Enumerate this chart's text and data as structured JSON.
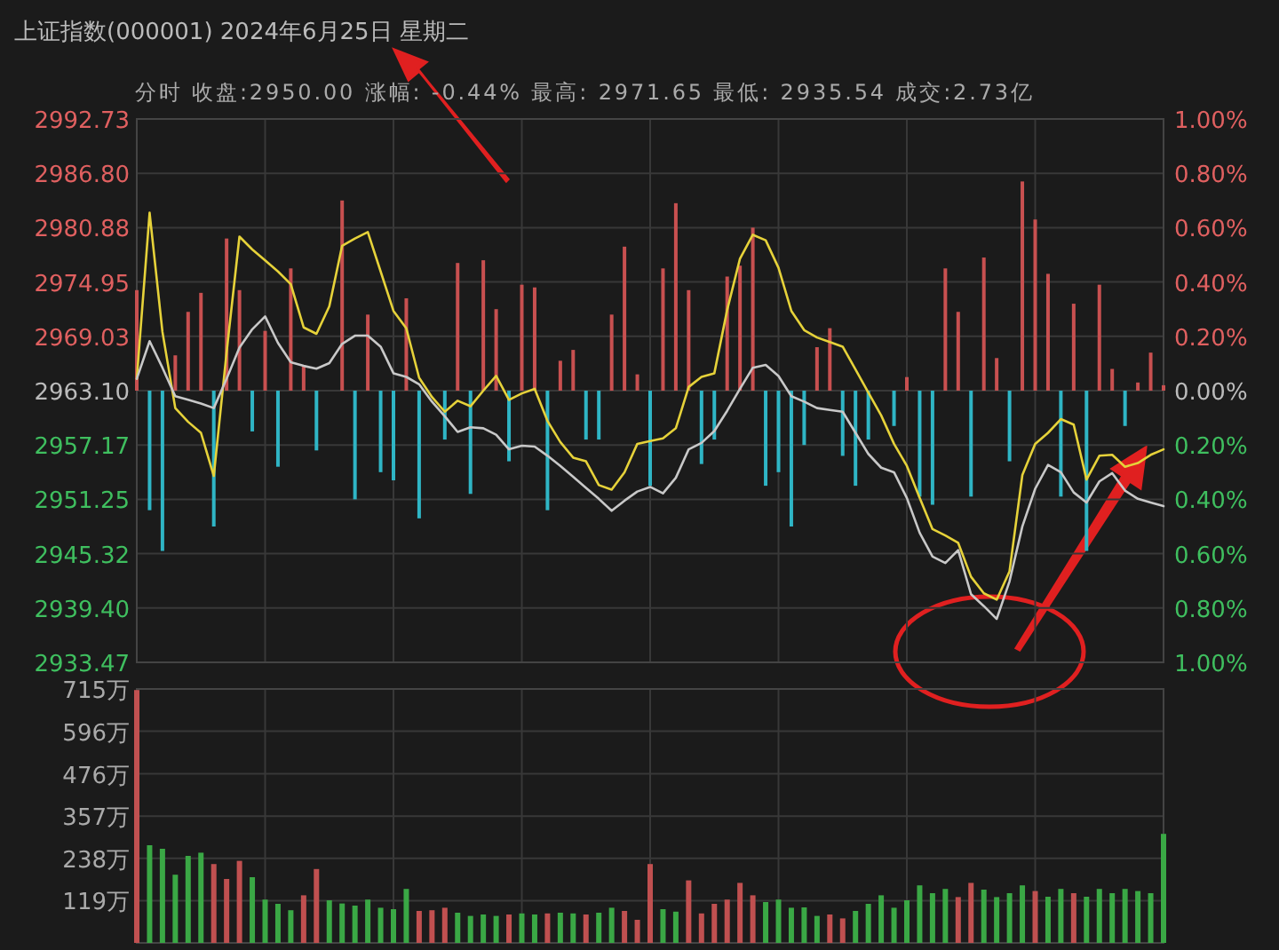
{
  "chart_data": [
    {
      "type": "line",
      "title": "上证指数(000001) 2024年6月25日 星期二",
      "subtitle": "分时 收盘:2950.00 涨幅: -0.44% 最高: 2971.65 最低: 2935.54 成交:2.73亿",
      "categories": [
        null,
        null,
        null,
        null,
        null,
        null,
        null,
        null,
        null,
        null,
        null,
        null,
        null,
        null,
        null,
        null,
        null,
        null,
        null,
        null,
        null,
        null,
        null,
        null,
        null,
        null,
        null,
        null,
        null,
        null,
        null,
        null,
        null,
        null,
        null,
        null,
        null,
        null,
        null,
        null,
        null,
        null,
        null,
        null,
        null,
        null,
        null,
        null,
        null,
        null,
        null,
        null,
        null,
        null,
        null,
        null,
        null,
        null,
        null,
        null,
        null,
        null,
        null,
        null,
        null,
        null,
        null,
        null,
        null,
        null,
        null,
        null,
        null,
        null,
        null,
        null,
        null,
        null,
        null,
        null,
        null
      ],
      "ylim": [
        2933.47,
        2992.73
      ],
      "yticks": [
        {
          "value": 2933.47,
          "label": "2933.47"
        },
        {
          "value": 2939.4,
          "label": "2939.40"
        },
        {
          "value": 2945.32,
          "label": "2945.32"
        },
        {
          "value": 2951.25,
          "label": "2951.25"
        },
        {
          "value": 2957.17,
          "label": "2957.17"
        },
        {
          "value": 2963.1,
          "label": "2963.10"
        },
        {
          "value": 2969.03,
          "label": "2969.03"
        },
        {
          "value": 2974.95,
          "label": "2974.95"
        },
        {
          "value": 2980.88,
          "label": "2980.88"
        },
        {
          "value": 2986.8,
          "label": "2986.80"
        },
        {
          "value": 2992.73,
          "label": "2992.73"
        }
      ],
      "y2lim": [
        -1,
        1
      ],
      "y2ticks": [
        {
          "value": -1,
          "label": "1.00%"
        },
        {
          "value": -0.8,
          "label": "0.80%"
        },
        {
          "value": -0.6,
          "label": "0.60%"
        },
        {
          "value": -0.4,
          "label": "0.40%"
        },
        {
          "value": -0.2,
          "label": "0.20%"
        },
        {
          "value": 0,
          "label": "0.00%"
        },
        {
          "value": 0.2,
          "label": "0.20%"
        },
        {
          "value": 0.4,
          "label": "0.40%"
        },
        {
          "value": 0.6,
          "label": "0.60%"
        },
        {
          "value": 0.8,
          "label": "0.80%"
        },
        {
          "value": 1,
          "label": "1.00%"
        }
      ],
      "grid": true,
      "series": [
        {
          "type": "bar",
          "axis": "y2",
          "color": "#c85050",
          "values": [
            0.37,
            null,
            null,
            0.13,
            0.29,
            0.36,
            null,
            0.56,
            0.37,
            null,
            0.22,
            null,
            0.45,
            0.09,
            null,
            null,
            0.7,
            null,
            0.28,
            null,
            null,
            0.34,
            null,
            null,
            null,
            0.47,
            null,
            0.48,
            0.3,
            null,
            0.39,
            0.38,
            null,
            0.11,
            0.15,
            null,
            null,
            0.28,
            0.53,
            0.06,
            null,
            0.45,
            0.69,
            0.37,
            null,
            null,
            0.42,
            0.46,
            0.6,
            null,
            null,
            null,
            null,
            0.16,
            0.23,
            null,
            null,
            null,
            null,
            null,
            0.05,
            null,
            null,
            0.45,
            0.29,
            null,
            0.49,
            0.12,
            null,
            0.77,
            0.63,
            0.43,
            null,
            0.32,
            null,
            0.39,
            0.08,
            null,
            0.03,
            0.14,
            0.02
          ]
        },
        {
          "type": "bar",
          "axis": "y2",
          "color": "#2fb5c5",
          "values": [
            null,
            -0.44,
            -0.59,
            null,
            null,
            null,
            -0.5,
            null,
            null,
            -0.15,
            null,
            -0.28,
            null,
            null,
            -0.22,
            null,
            null,
            -0.4,
            null,
            -0.3,
            -0.33,
            null,
            -0.47,
            null,
            -0.18,
            null,
            -0.38,
            null,
            null,
            -0.26,
            null,
            null,
            -0.44,
            null,
            null,
            -0.18,
            -0.18,
            null,
            null,
            null,
            -0.35,
            null,
            null,
            null,
            -0.27,
            -0.18,
            null,
            null,
            null,
            -0.35,
            -0.3,
            -0.5,
            -0.2,
            null,
            null,
            -0.24,
            -0.35,
            -0.18,
            null,
            -0.13,
            null,
            -0.39,
            -0.42,
            null,
            null,
            -0.39,
            null,
            null,
            -0.26,
            null,
            null,
            null,
            -0.39,
            null,
            -0.59,
            null,
            null,
            -0.13,
            null,
            null,
            null
          ]
        },
        {
          "type": "line",
          "color": "#e6d23a",
          "values": [
            2964.4,
            2982.5,
            2969.5,
            2961.2,
            2959.7,
            2958.5,
            2953.8,
            2967.3,
            2979.9,
            2978.5,
            2977.3,
            2976.1,
            2974.7,
            2970.0,
            2969.3,
            2972.3,
            2978.9,
            2979.7,
            2980.4,
            2976.1,
            2971.8,
            2969.9,
            2964.5,
            2962.4,
            2960.8,
            2962.0,
            2961.4,
            2963.1,
            2964.7,
            2962.1,
            2962.8,
            2963.3,
            2959.8,
            2957.5,
            2955.8,
            2955.4,
            2952.8,
            2952.3,
            2954.2,
            2957.3,
            2957.6,
            2957.9,
            2959.0,
            2963.5,
            2964.6,
            2965.0,
            2971.9,
            2977.5,
            2980.1,
            2979.5,
            2976.5,
            2971.8,
            2969.7,
            2968.9,
            2968.4,
            2967.9,
            2965.4,
            2962.9,
            2960.4,
            2957.3,
            2954.9,
            2951.4,
            2948.0,
            2947.3,
            2946.5,
            2942.8,
            2941.0,
            2940.3,
            2943.4,
            2953.9,
            2957.3,
            2958.5,
            2960.0,
            2959.4,
            2953.4,
            2956.0,
            2956.1,
            2954.8,
            2955.2,
            2956.1,
            2956.7
          ]
        },
        {
          "type": "line",
          "color": "#c8c8c8",
          "values": [
            2964.4,
            2968.5,
            2965.6,
            2962.5,
            2962.1,
            2961.7,
            2961.2,
            2964.4,
            2967.8,
            2969.8,
            2971.2,
            2968.3,
            2966.2,
            2965.8,
            2965.5,
            2966.1,
            2968.2,
            2969.1,
            2969.1,
            2967.9,
            2965.0,
            2964.6,
            2963.8,
            2961.9,
            2960.3,
            2958.6,
            2959.1,
            2959.0,
            2958.3,
            2956.7,
            2957.1,
            2957.0,
            2956.0,
            2954.9,
            2953.7,
            2952.5,
            2951.3,
            2950.0,
            2951.1,
            2952.1,
            2952.6,
            2951.9,
            2953.6,
            2956.7,
            2957.4,
            2958.7,
            2960.9,
            2963.3,
            2965.6,
            2965.9,
            2964.7,
            2962.5,
            2961.9,
            2961.2,
            2961.0,
            2960.8,
            2958.5,
            2956.2,
            2954.7,
            2954.2,
            2951.4,
            2947.6,
            2945.0,
            2944.3,
            2945.7,
            2940.9,
            2939.6,
            2938.2,
            2942.3,
            2948.3,
            2952.4,
            2955.0,
            2954.2,
            2952.0,
            2950.9,
            2953.2,
            2954.1,
            2952.2,
            2951.3,
            2950.9,
            2950.5
          ]
        }
      ]
    },
    {
      "type": "bar",
      "categories": [
        null,
        null,
        null,
        null,
        null,
        null,
        null,
        null,
        null,
        null,
        null,
        null,
        null,
        null,
        null,
        null,
        null,
        null,
        null,
        null,
        null,
        null,
        null,
        null,
        null,
        null,
        null,
        null,
        null,
        null,
        null,
        null,
        null,
        null,
        null,
        null,
        null,
        null,
        null,
        null,
        null,
        null,
        null,
        null,
        null,
        null,
        null,
        null,
        null,
        null,
        null,
        null,
        null,
        null,
        null,
        null,
        null,
        null,
        null,
        null,
        null,
        null,
        null,
        null,
        null,
        null,
        null,
        null,
        null,
        null,
        null,
        null,
        null,
        null,
        null,
        null,
        null,
        null,
        null,
        null,
        null
      ],
      "ylim": [
        0,
        715
      ],
      "yticks": [
        {
          "value": 119,
          "label": "119万"
        },
        {
          "value": 238,
          "label": "238万"
        },
        {
          "value": 357,
          "label": "357万"
        },
        {
          "value": 476,
          "label": "476万"
        },
        {
          "value": 596,
          "label": "596万"
        },
        {
          "value": 715,
          "label": "715万"
        }
      ],
      "grid": true,
      "series": [
        {
          "colors": [
            "#c05050",
            "#3aa845",
            "#3aa845",
            "#3aa845",
            "#3aa845",
            "#3aa845",
            "#c05050",
            "#c05050",
            "#c05050",
            "#3aa845",
            "#3aa845",
            "#3aa845",
            "#3aa845",
            "#c05050",
            "#c05050",
            "#3aa845",
            "#3aa845",
            "#3aa845",
            "#3aa845",
            "#3aa845",
            "#3aa845",
            "#3aa845",
            "#c05050",
            "#c05050",
            "#c05050",
            "#3aa845",
            "#3aa845",
            "#3aa845",
            "#3aa845",
            "#c05050",
            "#3aa845",
            "#3aa845",
            "#c05050",
            "#3aa845",
            "#3aa845",
            "#c05050",
            "#3aa845",
            "#3aa845",
            "#c05050",
            "#c05050",
            "#c05050",
            "#3aa845",
            "#3aa845",
            "#c05050",
            "#c05050",
            "#c05050",
            "#c05050",
            "#c05050",
            "#c05050",
            "#3aa845",
            "#3aa845",
            "#3aa845",
            "#3aa845",
            "#3aa845",
            "#c05050",
            "#c05050",
            "#3aa845",
            "#3aa845",
            "#3aa845",
            "#3aa845",
            "#3aa845",
            "#3aa845",
            "#3aa845",
            "#3aa845",
            "#c05050",
            "#c05050",
            "#3aa845",
            "#3aa845",
            "#3aa845",
            "#3aa845",
            "#c05050",
            "#3aa845",
            "#3aa845",
            "#c05050",
            "#3aa845",
            "#3aa845",
            "#3aa845",
            "#3aa845",
            "#3aa845",
            "#3aa845",
            "#3aa845"
          ],
          "values": [
            712,
            275,
            265,
            192,
            245,
            254,
            222,
            180,
            231,
            185,
            122,
            110,
            92,
            134,
            208,
            120,
            111,
            105,
            122,
            99,
            95,
            152,
            90,
            92,
            99,
            85,
            76,
            80,
            76,
            80,
            83,
            80,
            83,
            85,
            83,
            80,
            85,
            99,
            90,
            65,
            222,
            95,
            88,
            176,
            83,
            110,
            122,
            169,
            134,
            115,
            122,
            99,
            100,
            76,
            80,
            69,
            90,
            110,
            134,
            99,
            120,
            162,
            140,
            152,
            129,
            169,
            150,
            129,
            140,
            162,
            146,
            130,
            152,
            140,
            130,
            152,
            140,
            152,
            146,
            140,
            307
          ]
        }
      ]
    }
  ]
}
